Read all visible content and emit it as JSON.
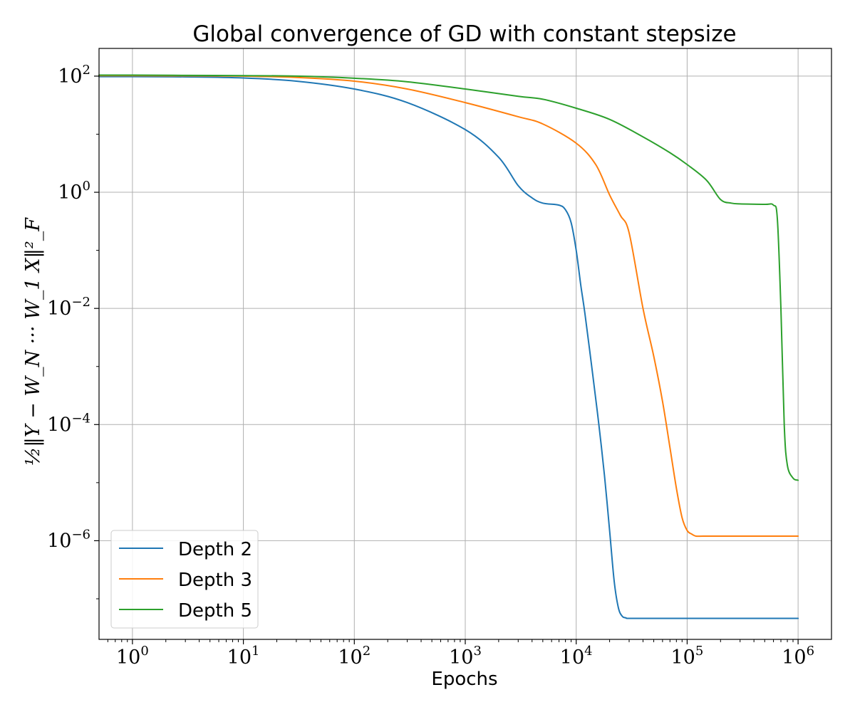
{
  "chart_data": {
    "type": "line",
    "title": "Global convergence of GD with constant stepsize",
    "xlabel": "Epochs",
    "ylabel": "½‖Y − W_N ··· W_1 X‖²_F",
    "xscale": "log",
    "yscale": "log",
    "xlim": [
      0.5,
      2000000
    ],
    "ylim": [
      2e-08,
      300
    ],
    "grid": true,
    "legend_position": "bottom-left",
    "x_ticks": [
      {
        "base": "10",
        "exp": "0",
        "value": 1
      },
      {
        "base": "10",
        "exp": "1",
        "value": 10
      },
      {
        "base": "10",
        "exp": "2",
        "value": 100
      },
      {
        "base": "10",
        "exp": "3",
        "value": 1000
      },
      {
        "base": "10",
        "exp": "4",
        "value": 10000
      },
      {
        "base": "10",
        "exp": "5",
        "value": 100000
      },
      {
        "base": "10",
        "exp": "6",
        "value": 1000000
      }
    ],
    "y_ticks": [
      {
        "base": "10",
        "exp": "2",
        "value": 100
      },
      {
        "base": "10",
        "exp": "0",
        "value": 1
      },
      {
        "base": "10",
        "exp": "−2",
        "value": 0.01
      },
      {
        "base": "10",
        "exp": "−4",
        "value": 0.0001
      },
      {
        "base": "10",
        "exp": "−6",
        "value": 1e-06
      }
    ],
    "series": [
      {
        "name": "Depth 2",
        "color": "#1f77b4",
        "x": [
          0.5,
          1,
          3,
          10,
          30,
          100,
          300,
          1000,
          2000,
          3000,
          4000,
          5000,
          7000,
          8000,
          9000,
          10000,
          11000,
          12000,
          14000,
          16000,
          18000,
          20000,
          22000,
          24000,
          26000,
          28000,
          30000,
          50000,
          100000,
          300000,
          1000000
        ],
        "y": [
          98,
          98,
          97,
          93,
          82,
          60,
          35,
          12,
          4,
          1.3,
          0.8,
          0.65,
          0.6,
          0.5,
          0.3,
          0.1,
          0.025,
          0.008,
          0.0008,
          0.0001,
          1.3e-05,
          1.5e-06,
          2e-07,
          7e-08,
          5e-08,
          4.7e-08,
          4.6e-08,
          4.6e-08,
          4.6e-08,
          4.6e-08,
          4.6e-08
        ]
      },
      {
        "name": "Depth 3",
        "color": "#ff7f0e",
        "x": [
          0.5,
          1,
          3,
          10,
          30,
          100,
          300,
          1000,
          3000,
          5000,
          10000,
          15000,
          20000,
          25000,
          30000,
          40000,
          50000,
          60000,
          70000,
          80000,
          90000,
          100000,
          110000,
          120000,
          140000,
          200000,
          500000,
          1000000
        ],
        "y": [
          102,
          102,
          101,
          100,
          95,
          82,
          60,
          35,
          20,
          15,
          7,
          3,
          0.9,
          0.4,
          0.2,
          0.01,
          0.0015,
          0.00025,
          4e-05,
          8e-06,
          2.5e-06,
          1.5e-06,
          1.3e-06,
          1.2e-06,
          1.2e-06,
          1.2e-06,
          1.2e-06,
          1.2e-06
        ]
      },
      {
        "name": "Depth 5",
        "color": "#2ca02c",
        "x": [
          0.5,
          1,
          3,
          10,
          30,
          100,
          300,
          1000,
          3000,
          5000,
          10000,
          20000,
          40000,
          70000,
          100000,
          150000,
          200000,
          250000,
          300000,
          500000,
          600000,
          650000,
          700000,
          750000,
          800000,
          900000,
          1000000
        ],
        "y": [
          104,
          104,
          103,
          102,
          100,
          92,
          80,
          60,
          45,
          40,
          28,
          18,
          9,
          4.8,
          3,
          1.6,
          0.75,
          0.65,
          0.63,
          0.62,
          0.6,
          0.35,
          0.01,
          0.0001,
          2e-05,
          1.2e-05,
          1.1e-05
        ]
      }
    ]
  }
}
